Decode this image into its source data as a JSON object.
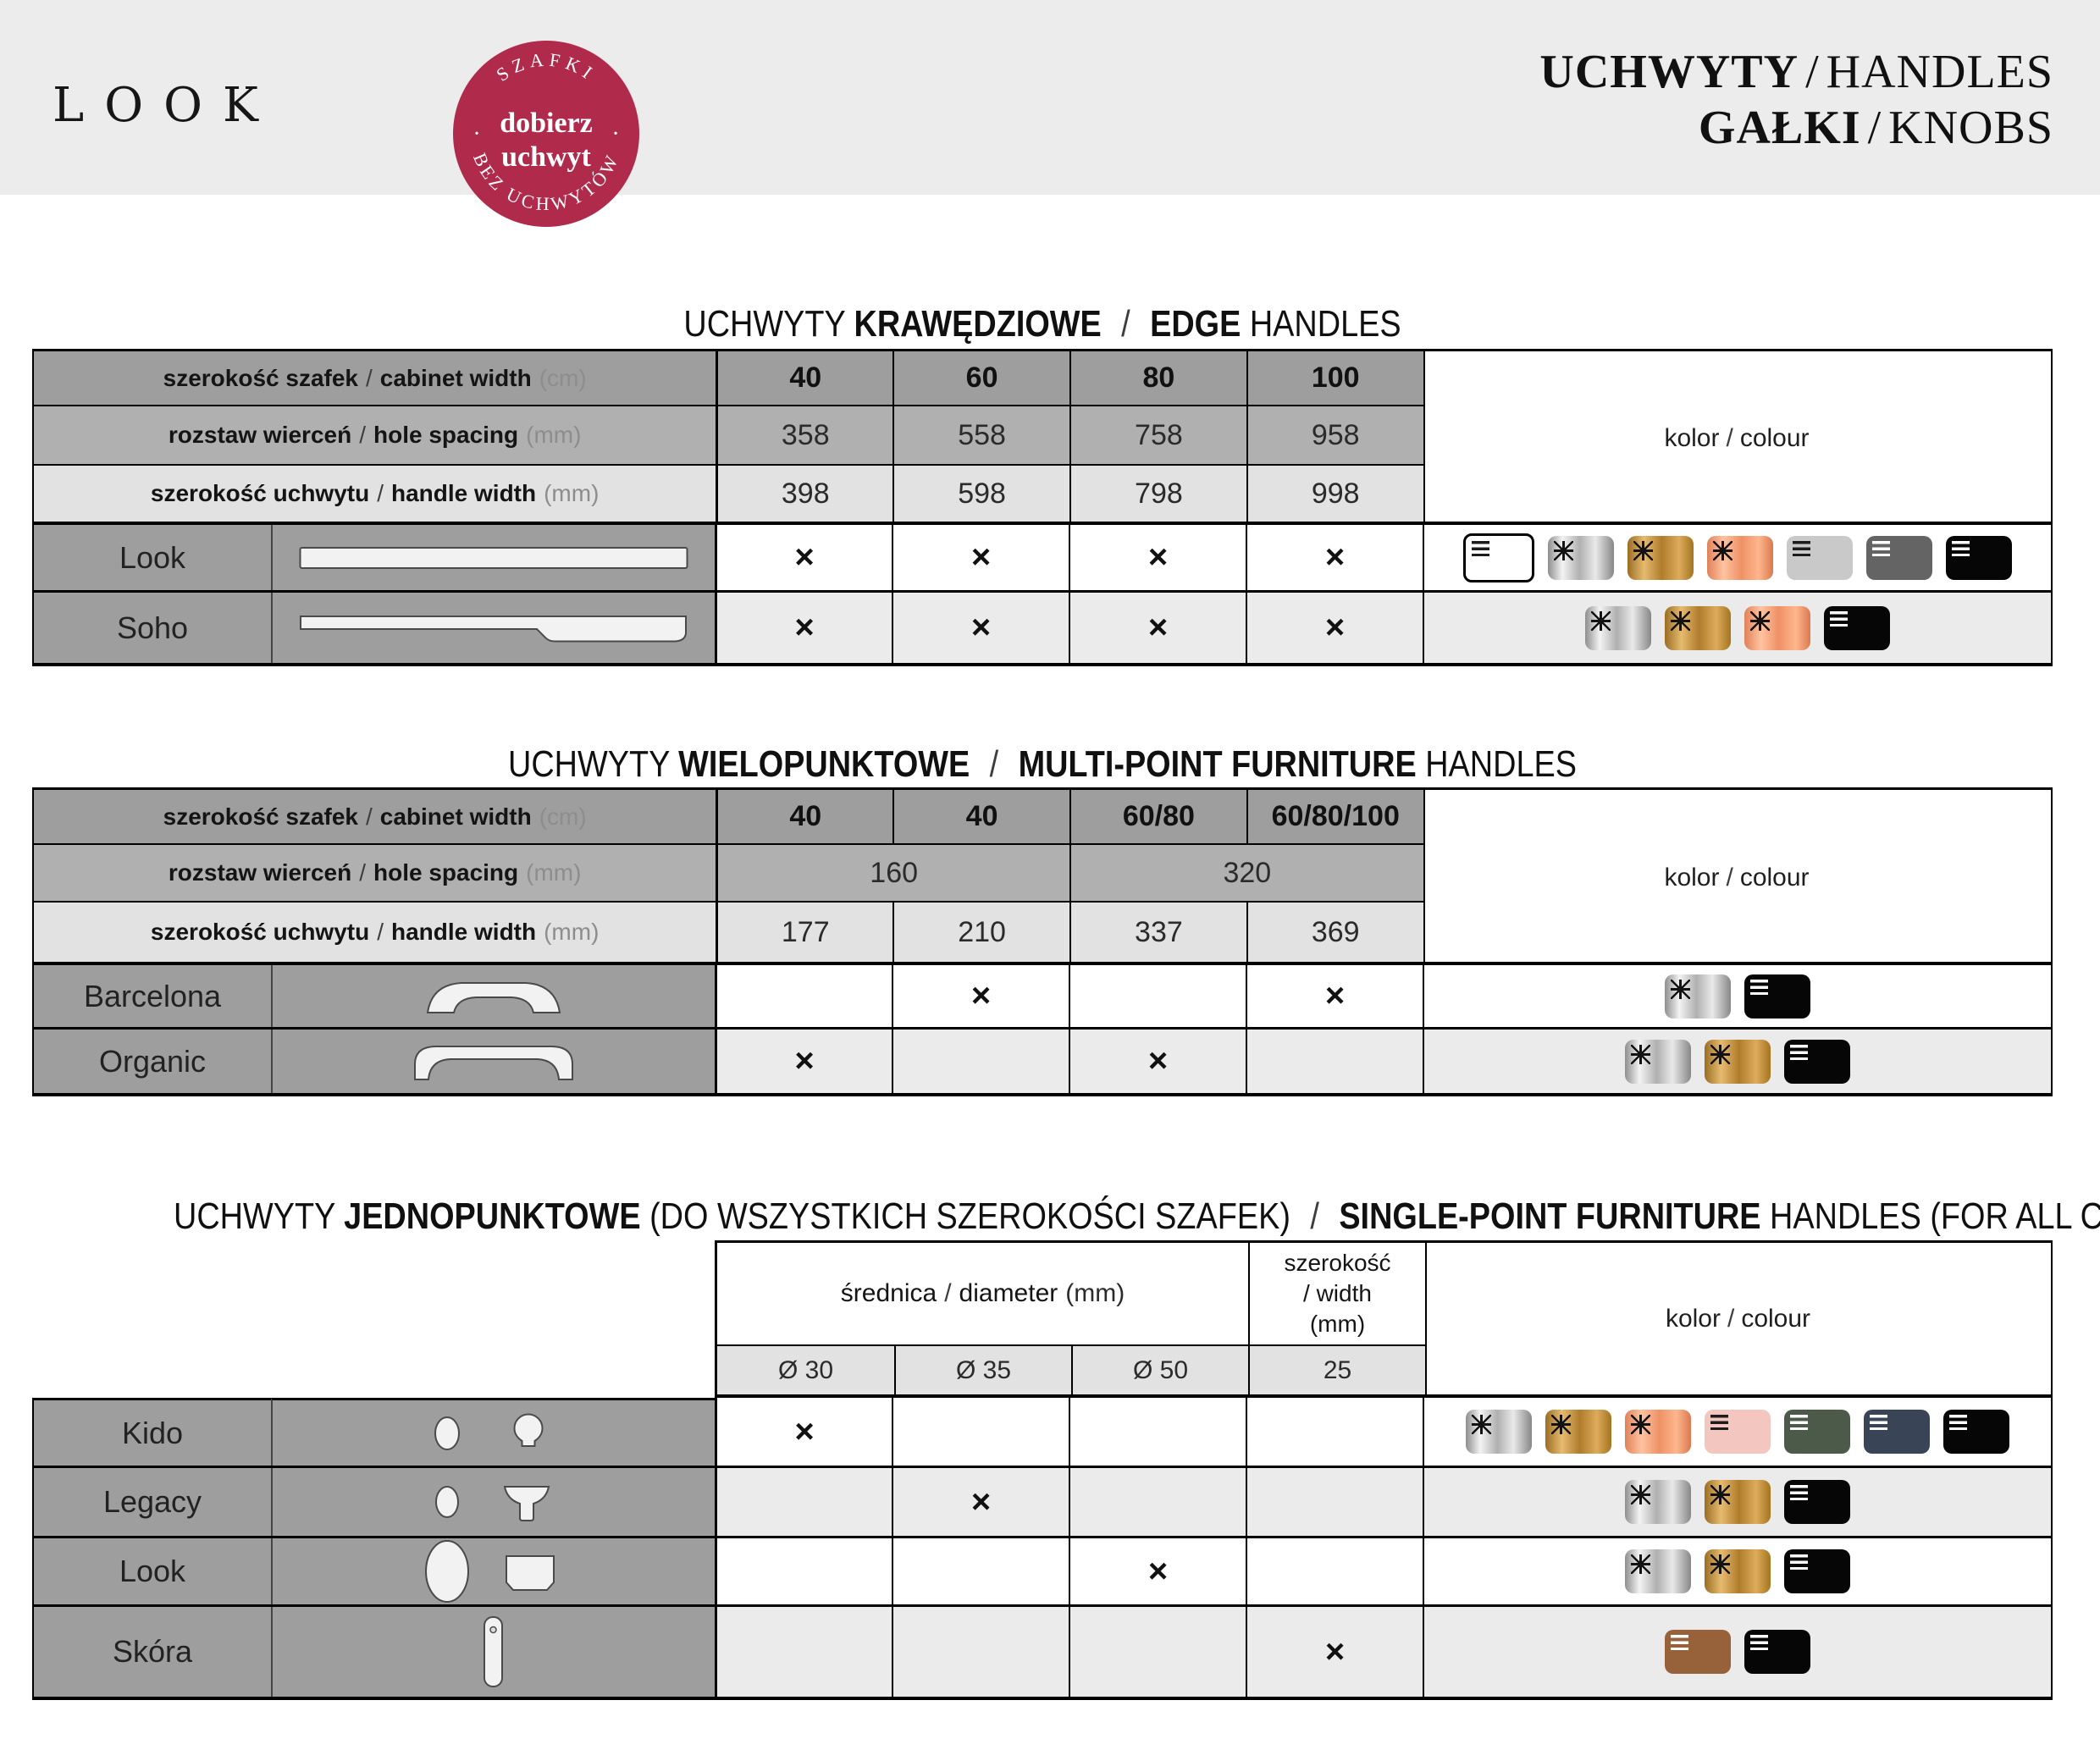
{
  "labels": {
    "sep": "/",
    "kolor_pl": "kolor",
    "kolor_en": "colour"
  },
  "header": {
    "brand": "LOOK",
    "badge": {
      "arc_top": "SZAFKI",
      "center_line1": "dobierz",
      "center_line2": "uchwyt",
      "arc_bottom": "BEZ UCHWYTÓW",
      "dot": "·",
      "bg": "#b02b4b"
    },
    "title": {
      "line1_pl": "UCHWYTY",
      "line1_en": "HANDLES",
      "line2_pl": "GAŁKI",
      "line2_en": "KNOBS",
      "sep": "/"
    }
  },
  "palette": {
    "white": "#ffffff",
    "silver": "linear-gradient(90deg,#8e8e8e 0%,#f3f3f3 22%,#b0b0b0 48%,#e9e9e9 72%,#878787 100%)",
    "gold": "linear-gradient(90deg,#9a6d22 0%,#e6bb70 25%,#b07c2c 52%,#ddab5c 78%,#a4741f 100%)",
    "copper": "linear-gradient(90deg,#e08159 0%,#ffc3a0 25%,#ee9166 52%,#ffb68d 78%,#da7950 100%)",
    "lightgray": "#c9c9c9",
    "darkgray": "#646464",
    "black": "#060606",
    "pink": "#f3c6bf",
    "green": "#4c5b49",
    "navy": "#3a4457",
    "brown": "#97613a"
  },
  "table1": {
    "title": {
      "pre": "UCHWYTY",
      "bold_pl": "KRAWĘDZIOWE",
      "sep": "/",
      "bold_en": "EDGE",
      "post": "HANDLES"
    },
    "col_headers": [
      {
        "pl": "szerokość szafek",
        "en": "cabinet width",
        "unit": "(cm)",
        "values": [
          "40",
          "60",
          "80",
          "100"
        ]
      },
      {
        "pl": "rozstaw wierceń",
        "en": "hole spacing",
        "unit": "(mm)",
        "values": [
          "358",
          "558",
          "758",
          "958"
        ]
      },
      {
        "pl": "szerokość uchwytu",
        "en": "handle width",
        "unit": "(mm)",
        "values": [
          "398",
          "598",
          "798",
          "998"
        ]
      }
    ],
    "rows": [
      {
        "name": "Look",
        "cells": [
          "×",
          "×",
          "×",
          "×"
        ],
        "swatches": [
          {
            "color": "white",
            "finish": "matte",
            "ink": "dark",
            "bordered": true
          },
          {
            "color": "silver",
            "finish": "gloss"
          },
          {
            "color": "gold",
            "finish": "gloss"
          },
          {
            "color": "copper",
            "finish": "gloss"
          },
          {
            "color": "lightgray",
            "finish": "matte",
            "ink": "dark"
          },
          {
            "color": "darkgray",
            "finish": "matte",
            "ink": "light"
          },
          {
            "color": "black",
            "finish": "matte",
            "ink": "light"
          }
        ]
      },
      {
        "name": "Soho",
        "cells": [
          "×",
          "×",
          "×",
          "×"
        ],
        "swatches": [
          {
            "color": "silver",
            "finish": "gloss"
          },
          {
            "color": "gold",
            "finish": "gloss"
          },
          {
            "color": "copper",
            "finish": "gloss"
          },
          {
            "color": "black",
            "finish": "matte",
            "ink": "light"
          }
        ]
      }
    ]
  },
  "table2": {
    "title": {
      "pre": "UCHWYTY",
      "bold_pl": "WIELOPUNKTOWE",
      "sep": "/",
      "bold_en": "MULTI-POINT FURNITURE",
      "post": "HANDLES"
    },
    "col_headers": [
      {
        "pl": "szerokość szafek",
        "en": "cabinet width",
        "unit": "(cm)",
        "values": [
          "40",
          "40",
          "60/80",
          "60/80/100"
        ]
      },
      {
        "pl": "rozstaw wierceń",
        "en": "hole spacing",
        "unit": "(mm)",
        "values_merged": [
          "160",
          "320"
        ]
      },
      {
        "pl": "szerokość uchwytu",
        "en": "handle width",
        "unit": "(mm)",
        "values": [
          "177",
          "210",
          "337",
          "369"
        ]
      }
    ],
    "rows": [
      {
        "name": "Barcelona",
        "cells": [
          "",
          "×",
          "",
          "×"
        ],
        "swatches": [
          {
            "color": "silver",
            "finish": "gloss"
          },
          {
            "color": "black",
            "finish": "matte",
            "ink": "light"
          }
        ]
      },
      {
        "name": "Organic",
        "cells": [
          "×",
          "",
          "×",
          ""
        ],
        "swatches": [
          {
            "color": "silver",
            "finish": "gloss"
          },
          {
            "color": "gold",
            "finish": "gloss"
          },
          {
            "color": "black",
            "finish": "matte",
            "ink": "light"
          }
        ]
      }
    ]
  },
  "table3": {
    "title": {
      "pre": "UCHWYTY",
      "bold_pl": "JEDNOPUNKTOWE",
      "paren_pl": "(DO WSZYSTKICH SZEROKOŚCI SZAFEK)",
      "sep": "/",
      "bold_en": "SINGLE-POINT FURNITURE",
      "mid_en": "HANDLES",
      "paren_en": "(FOR ALL CABINET WIDTHS)"
    },
    "header": {
      "diameter_pl": "średnica",
      "diameter_en": "diameter",
      "diameter_unit": "(mm)",
      "width_l1": "szerokość",
      "width_l2": "/ width",
      "width_l3": "(mm)",
      "sizes": [
        "Ø 30",
        "Ø 35",
        "Ø 50",
        "25"
      ]
    },
    "rows": [
      {
        "name": "Kido",
        "cells": [
          "×",
          "",
          "",
          ""
        ],
        "swatches": [
          {
            "color": "silver",
            "finish": "gloss"
          },
          {
            "color": "gold",
            "finish": "gloss"
          },
          {
            "color": "copper",
            "finish": "gloss"
          },
          {
            "color": "pink",
            "finish": "matte",
            "ink": "dark"
          },
          {
            "color": "green",
            "finish": "matte",
            "ink": "light"
          },
          {
            "color": "navy",
            "finish": "matte",
            "ink": "light"
          },
          {
            "color": "black",
            "finish": "matte",
            "ink": "light"
          }
        ]
      },
      {
        "name": "Legacy",
        "cells": [
          "",
          "×",
          "",
          ""
        ],
        "swatches": [
          {
            "color": "silver",
            "finish": "gloss"
          },
          {
            "color": "gold",
            "finish": "gloss"
          },
          {
            "color": "black",
            "finish": "matte",
            "ink": "light"
          }
        ]
      },
      {
        "name": "Look",
        "cells": [
          "",
          "",
          "×",
          ""
        ],
        "swatches": [
          {
            "color": "silver",
            "finish": "gloss"
          },
          {
            "color": "gold",
            "finish": "gloss"
          },
          {
            "color": "black",
            "finish": "matte",
            "ink": "light"
          }
        ]
      },
      {
        "name": "Skóra",
        "cells": [
          "",
          "",
          "",
          "×"
        ],
        "swatches": [
          {
            "color": "brown",
            "finish": "matte",
            "ink": "light"
          },
          {
            "color": "black",
            "finish": "matte",
            "ink": "light"
          }
        ]
      }
    ]
  }
}
